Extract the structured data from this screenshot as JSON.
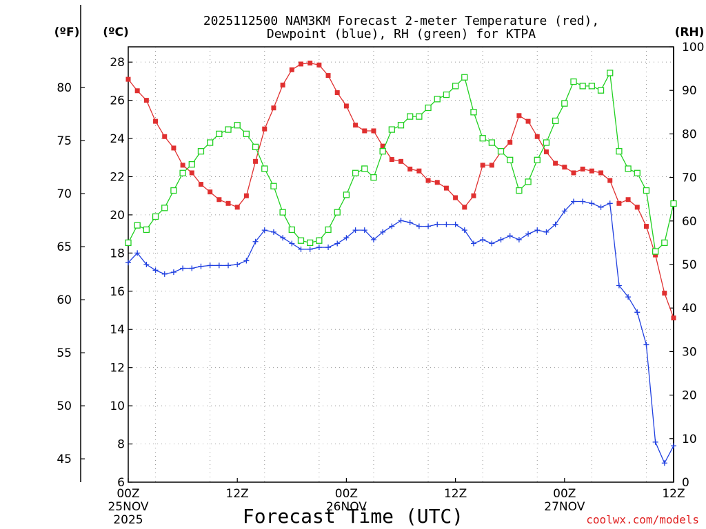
{
  "chart_data": {
    "type": "line",
    "title_lines": [
      "2025112500 NAM3KM Forecast 2-meter Temperature (red),",
      "Dewpoint (blue), RH (green) for KTPA"
    ],
    "xlabel": "Forecast Time (UTC)",
    "credit": "coolwx.com/models",
    "y_left_celsius": {
      "unit": "(ºC)",
      "range": [
        6,
        28.8
      ],
      "ticks": [
        6,
        8,
        10,
        12,
        14,
        16,
        18,
        20,
        22,
        24,
        26,
        28
      ]
    },
    "y_left_fahrenheit": {
      "unit": "(ºF)",
      "ticks": [
        45,
        50,
        55,
        60,
        65,
        70,
        75,
        80
      ]
    },
    "y_right_rh": {
      "unit": "(RH)",
      "range": [
        0,
        100
      ],
      "ticks": [
        0,
        10,
        20,
        30,
        40,
        50,
        60,
        70,
        80,
        90,
        100
      ]
    },
    "x_axis": {
      "unit": "hours since 2025112500",
      "range": [
        0,
        60
      ],
      "ticks": [
        {
          "h": 0,
          "lines": [
            "00Z",
            "25NOV",
            "2025"
          ]
        },
        {
          "h": 12,
          "lines": [
            "12Z"
          ]
        },
        {
          "h": 24,
          "lines": [
            "00Z",
            "26NOV"
          ]
        },
        {
          "h": 36,
          "lines": [
            "12Z"
          ]
        },
        {
          "h": 48,
          "lines": [
            "00Z",
            "27NOV"
          ]
        },
        {
          "h": 60,
          "lines": [
            "12Z"
          ]
        }
      ]
    },
    "grid": true,
    "x_hours": [
      0,
      1,
      2,
      3,
      4,
      5,
      6,
      7,
      8,
      9,
      10,
      11,
      12,
      13,
      14,
      15,
      16,
      17,
      18,
      19,
      20,
      21,
      22,
      23,
      24,
      25,
      26,
      27,
      28,
      29,
      30,
      31,
      32,
      33,
      34,
      35,
      36,
      37,
      38,
      39,
      40,
      41,
      42,
      43,
      44,
      45,
      46,
      47,
      48,
      49,
      50,
      51,
      52,
      53,
      54,
      55,
      56,
      57,
      58,
      59,
      60
    ],
    "series": [
      {
        "name": "Temperature (°C)",
        "color": "#e03030",
        "marker": "filled-square",
        "axis": "celsius",
        "values": [
          27.1,
          26.5,
          26.0,
          24.9,
          24.1,
          23.5,
          22.6,
          22.2,
          21.6,
          21.2,
          20.8,
          20.6,
          20.4,
          21.0,
          22.8,
          24.5,
          25.6,
          26.8,
          27.6,
          27.9,
          27.95,
          27.85,
          27.3,
          26.4,
          25.7,
          24.7,
          24.4,
          24.4,
          23.6,
          22.9,
          22.8,
          22.4,
          22.3,
          21.8,
          21.7,
          21.4,
          20.9,
          20.4,
          21.0,
          22.6,
          22.6,
          23.3,
          23.8,
          25.2,
          24.9,
          24.1,
          23.3,
          22.7,
          22.5,
          22.2,
          22.4,
          22.3,
          22.2,
          21.8,
          20.6,
          20.8,
          20.4,
          19.4,
          17.9,
          15.9,
          14.6
        ]
      },
      {
        "name": "Dewpoint (°C)",
        "color": "#2040e0",
        "marker": "plus",
        "axis": "celsius",
        "values": [
          17.5,
          18.0,
          17.4,
          17.1,
          16.9,
          17.0,
          17.2,
          17.2,
          17.3,
          17.35,
          17.35,
          17.35,
          17.4,
          17.6,
          18.6,
          19.2,
          19.1,
          18.8,
          18.5,
          18.2,
          18.2,
          18.3,
          18.3,
          18.5,
          18.8,
          19.2,
          19.2,
          18.7,
          19.1,
          19.4,
          19.7,
          19.6,
          19.4,
          19.4,
          19.5,
          19.5,
          19.5,
          19.2,
          18.5,
          18.7,
          18.5,
          18.7,
          18.9,
          18.7,
          19.0,
          19.2,
          19.1,
          19.5,
          20.2,
          20.7,
          20.7,
          20.6,
          20.4,
          20.6,
          16.3,
          15.7,
          14.9,
          13.2,
          8.1,
          7.0,
          7.9
        ]
      },
      {
        "name": "RH (%)",
        "color": "#20d020",
        "marker": "open-square",
        "axis": "rh",
        "values": [
          55,
          59,
          58,
          61,
          63,
          67,
          71,
          73,
          76,
          78,
          80,
          81,
          82,
          80,
          77,
          72,
          68,
          62,
          58,
          55.5,
          55,
          55.5,
          58,
          62,
          66,
          71,
          72,
          70,
          76,
          81,
          82,
          84,
          84,
          86,
          88,
          89,
          91,
          93,
          85,
          79,
          78,
          76,
          74,
          67,
          69,
          74,
          78,
          83,
          87,
          92,
          91,
          91,
          90,
          94,
          76,
          72,
          71,
          67,
          53,
          55,
          64
        ]
      }
    ]
  }
}
